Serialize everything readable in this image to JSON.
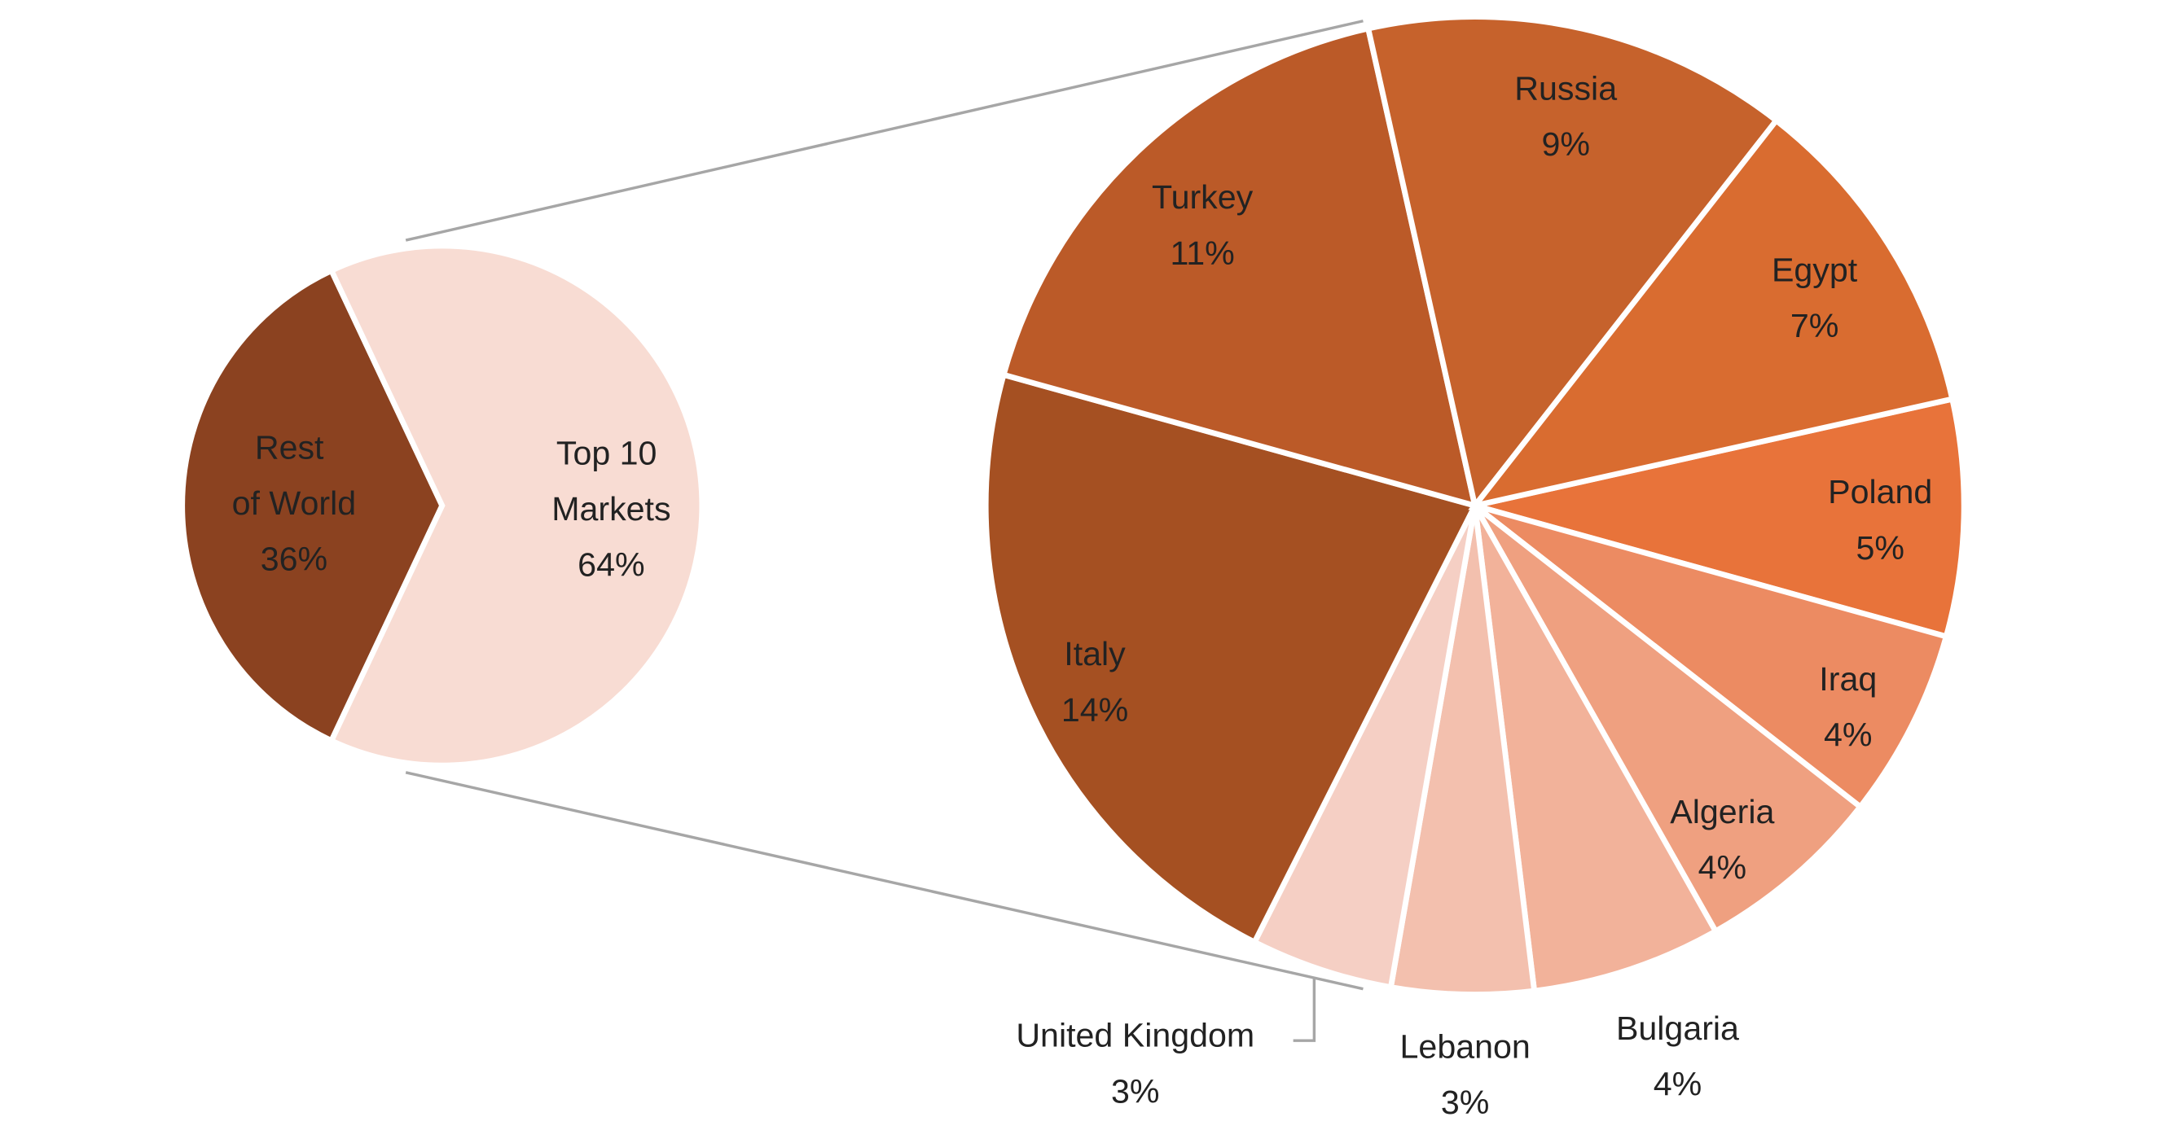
{
  "chart_data": {
    "type": "pie-of-pie",
    "main": {
      "categories": [
        "Rest of World",
        "Top 10 Markets"
      ],
      "values": [
        36,
        64
      ],
      "value_labels": [
        "36%",
        "64%"
      ],
      "colors": [
        "#8b4220",
        "#f8dcd3"
      ]
    },
    "detail": {
      "categories": [
        "Poland",
        "Iraq",
        "Algeria",
        "Bulgaria",
        "Lebanon",
        "United Kingdom",
        "Italy",
        "Turkey",
        "Russia",
        "Egypt"
      ],
      "values": [
        5,
        4,
        4,
        4,
        3,
        3,
        14,
        11,
        9,
        7
      ],
      "value_labels": [
        "5%",
        "4%",
        "4%",
        "4%",
        "3%",
        "3%",
        "14%",
        "11%",
        "9%",
        "7%"
      ],
      "colors": [
        "#e8733a",
        "#ec8b62",
        "#efa080",
        "#f2b29a",
        "#f3c0ae",
        "#f5cfc4",
        "#a55022",
        "#bb5a28",
        "#c6622c",
        "#d96c30"
      ]
    }
  }
}
